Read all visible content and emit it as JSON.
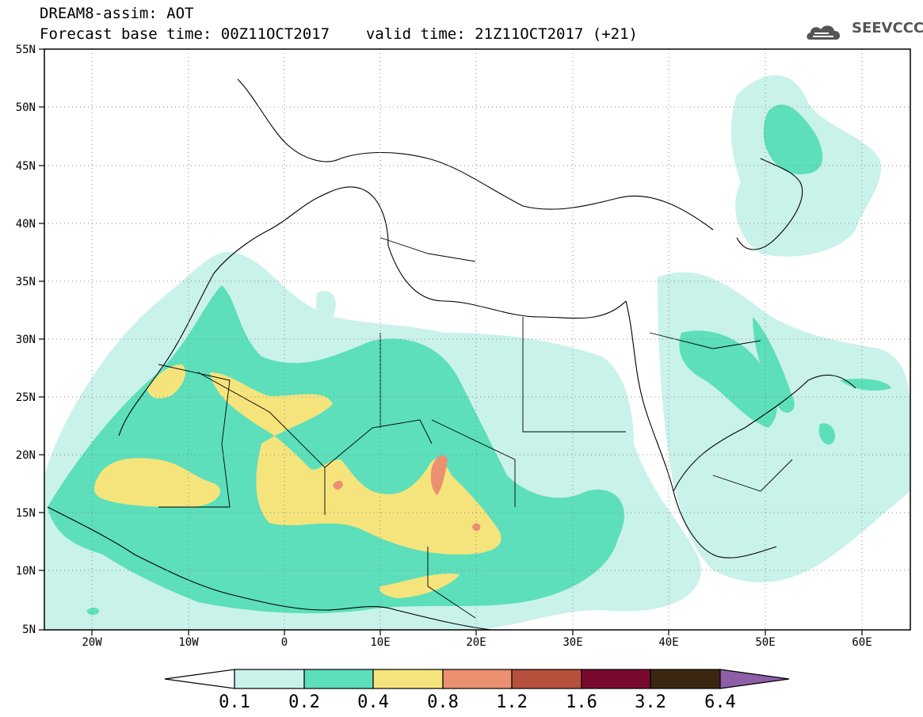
{
  "title": {
    "line1": "DREAM8-assim: AOT",
    "base_time": "Forecast base time: 00Z11OCT2017",
    "valid_time": "valid time: 21Z11OCT2017 (+21)"
  },
  "logo": {
    "text": "SEEVCCC",
    "icon": "cloud-logo-icon"
  },
  "map": {
    "lat_labels": [
      "55N",
      "50N",
      "45N",
      "40N",
      "35N",
      "30N",
      "25N",
      "20N",
      "15N",
      "10N",
      "5N"
    ],
    "lon_labels": [
      "20W",
      "10W",
      "0",
      "10E",
      "20E",
      "30E",
      "40E",
      "50E",
      "60E"
    ],
    "lon_range": [
      -25,
      65
    ],
    "lat_range": [
      5,
      55
    ]
  },
  "colorbar": {
    "labels": [
      "0.1",
      "0.2",
      "0.4",
      "0.8",
      "1.2",
      "1.6",
      "3.2",
      "6.4"
    ],
    "colors": [
      "#ffffff",
      "#c9f2ea",
      "#5cdfba",
      "#f5e47c",
      "#eb9070",
      "#b5503c",
      "#7a0a2d",
      "#3b2612",
      "#8e5fa6"
    ]
  },
  "colors": {
    "c1": "#c9f2ea",
    "c2": "#5cdfba",
    "c3": "#f5e47c",
    "c4": "#eb9070",
    "c5": "#d66a5a"
  }
}
